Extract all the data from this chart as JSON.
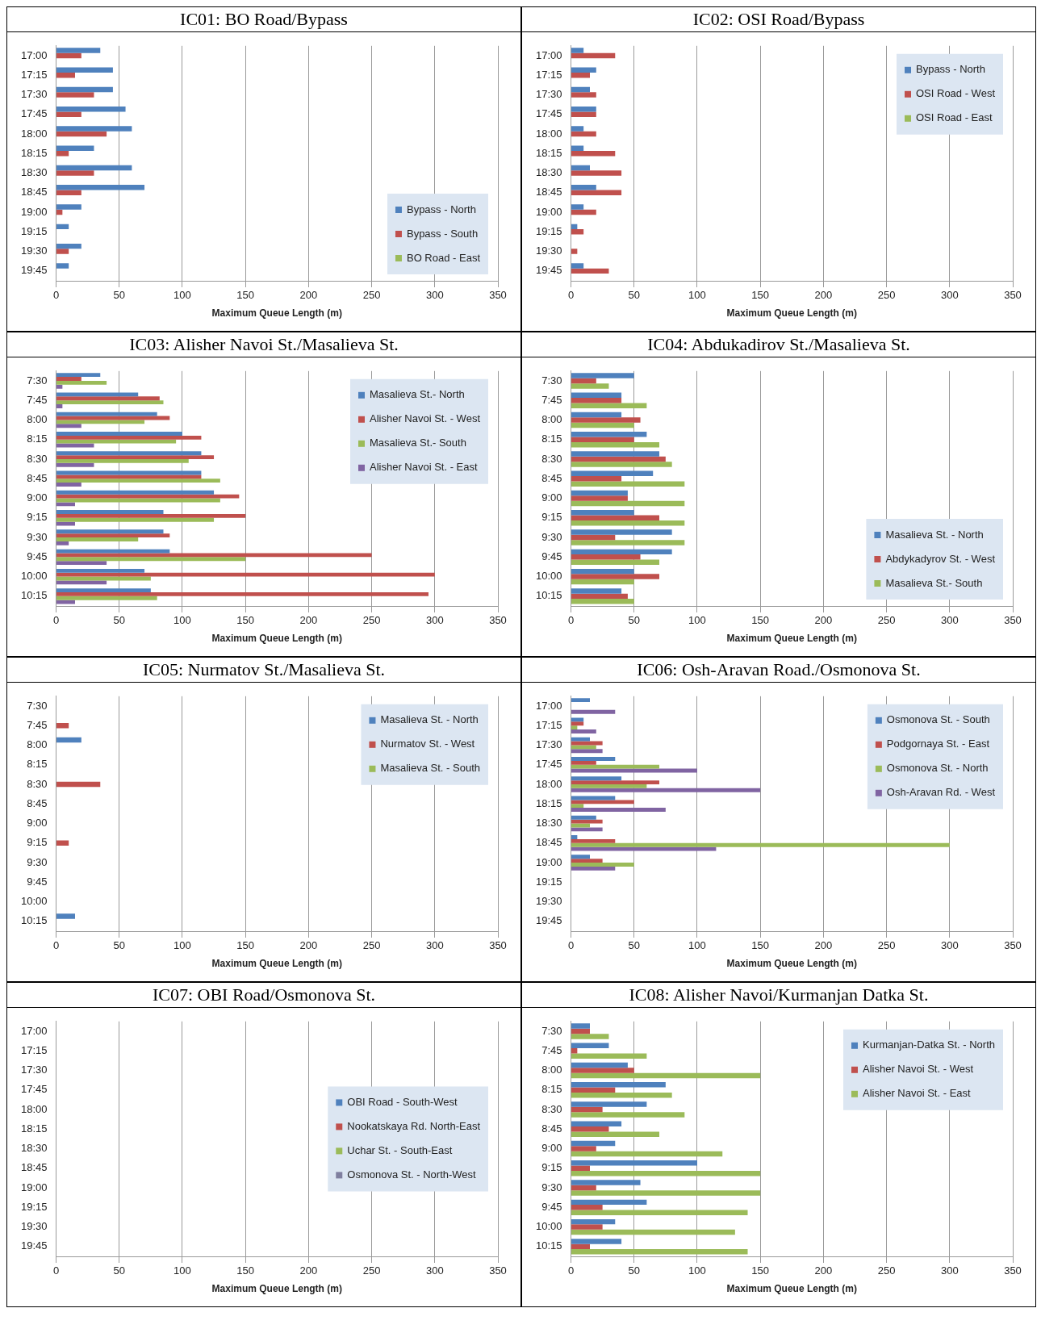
{
  "chart_data": [
    {
      "type": "bar",
      "orientation": "horizontal",
      "title": "IC01: BO Road/Bypass",
      "xlabel": "Maximum Queue Length (m)",
      "categories": [
        "17:00",
        "17:15",
        "17:30",
        "17:45",
        "18:00",
        "18:15",
        "18:30",
        "18:45",
        "19:00",
        "19:15",
        "19:30",
        "19:45"
      ],
      "series": [
        {
          "name": "Bypass - North",
          "color": "#4f81bd",
          "values": [
            35,
            45,
            45,
            55,
            60,
            30,
            60,
            70,
            20,
            10,
            20,
            10
          ]
        },
        {
          "name": "Bypass - South",
          "color": "#c0504d",
          "values": [
            20,
            15,
            30,
            20,
            40,
            10,
            30,
            20,
            5,
            0,
            10,
            0
          ]
        },
        {
          "name": "BO Road - East",
          "color": "#9bbb59",
          "values": [
            0,
            0,
            0,
            0,
            0,
            0,
            0,
            0,
            0,
            0,
            0,
            0
          ]
        }
      ],
      "xlim": [
        0,
        350
      ],
      "xticks": [
        0,
        50,
        100,
        150,
        200,
        250,
        300,
        350
      ],
      "grid": "x",
      "legend": "bottom right"
    },
    {
      "type": "bar",
      "orientation": "horizontal",
      "title": "IC02: OSI Road/Bypass",
      "xlabel": "Maximum Queue Length (m)",
      "categories": [
        "17:00",
        "17:15",
        "17:30",
        "17:45",
        "18:00",
        "18:15",
        "18:30",
        "18:45",
        "19:00",
        "19:15",
        "19:30",
        "19:45"
      ],
      "series": [
        {
          "name": "Bypass - North",
          "color": "#4f81bd",
          "values": [
            10,
            20,
            15,
            20,
            10,
            10,
            15,
            20,
            10,
            5,
            0,
            10
          ]
        },
        {
          "name": "OSI Road - West",
          "color": "#c0504d",
          "values": [
            35,
            15,
            20,
            20,
            20,
            35,
            40,
            40,
            20,
            10,
            5,
            30
          ]
        },
        {
          "name": "OSI Road - East",
          "color": "#9bbb59",
          "values": [
            0,
            0,
            0,
            0,
            0,
            0,
            0,
            0,
            0,
            0,
            0,
            0
          ]
        }
      ],
      "xlim": [
        0,
        350
      ],
      "xticks": [
        0,
        50,
        100,
        150,
        200,
        250,
        300,
        350
      ],
      "grid": "x",
      "legend": "top right"
    },
    {
      "type": "bar",
      "orientation": "horizontal",
      "title": "IC03: Alisher Navoi St./Masalieva St.",
      "xlabel": "Maximum Queue Length (m)",
      "categories": [
        "7:30",
        "7:45",
        "8:00",
        "8:15",
        "8:30",
        "8:45",
        "9:00",
        "9:15",
        "9:30",
        "9:45",
        "10:00",
        "10:15"
      ],
      "series": [
        {
          "name": "Masalieva St.- North",
          "color": "#4f81bd",
          "values": [
            35,
            65,
            80,
            100,
            115,
            115,
            125,
            85,
            85,
            90,
            70,
            75
          ]
        },
        {
          "name": "Alisher Navoi St. - West",
          "color": "#c0504d",
          "values": [
            20,
            82,
            90,
            115,
            125,
            115,
            145,
            150,
            90,
            250,
            300,
            295
          ]
        },
        {
          "name": "Masalieva St.- South",
          "color": "#9bbb59",
          "values": [
            40,
            85,
            70,
            95,
            105,
            130,
            130,
            125,
            65,
            150,
            75,
            80
          ]
        },
        {
          "name": "Alisher Navoi St. - East",
          "color": "#8064a2",
          "values": [
            5,
            5,
            20,
            30,
            30,
            20,
            15,
            15,
            10,
            40,
            40,
            15
          ]
        }
      ],
      "xlim": [
        0,
        350
      ],
      "xticks": [
        0,
        50,
        100,
        150,
        200,
        250,
        300,
        350
      ],
      "grid": "x",
      "legend": "top right"
    },
    {
      "type": "bar",
      "orientation": "horizontal",
      "title": "IC04: Abdukadirov St./Masalieva St.",
      "xlabel": "Maximum Queue Length (m)",
      "categories": [
        "7:30",
        "7:45",
        "8:00",
        "8:15",
        "8:30",
        "8:45",
        "9:00",
        "9:15",
        "9:30",
        "9:45",
        "10:00",
        "10:15"
      ],
      "series": [
        {
          "name": "Masalieva St. - North",
          "color": "#4f81bd",
          "values": [
            50,
            40,
            40,
            60,
            70,
            65,
            45,
            50,
            80,
            80,
            50,
            40
          ]
        },
        {
          "name": "Abdykadyrov St. - West",
          "color": "#c0504d",
          "values": [
            20,
            40,
            55,
            50,
            75,
            40,
            45,
            70,
            35,
            55,
            70,
            45
          ]
        },
        {
          "name": "Masalieva St.- South",
          "color": "#9bbb59",
          "values": [
            30,
            60,
            50,
            70,
            80,
            90,
            90,
            90,
            90,
            70,
            50,
            50
          ]
        }
      ],
      "xlim": [
        0,
        350
      ],
      "xticks": [
        0,
        50,
        100,
        150,
        200,
        250,
        300,
        350
      ],
      "grid": "x",
      "legend": "bottom right"
    },
    {
      "type": "bar",
      "orientation": "horizontal",
      "title": "IC05: Nurmatov St./Masalieva St.",
      "xlabel": "Maximum Queue Length (m)",
      "categories": [
        "7:30",
        "7:45",
        "8:00",
        "8:15",
        "8:30",
        "8:45",
        "9:00",
        "9:15",
        "9:30",
        "9:45",
        "10:00",
        "10:15"
      ],
      "series": [
        {
          "name": "Masalieva St. - North",
          "color": "#4f81bd",
          "values": [
            0,
            0,
            20,
            0,
            0,
            0,
            0,
            0,
            0,
            0,
            0,
            15
          ]
        },
        {
          "name": "Nurmatov St. - West",
          "color": "#c0504d",
          "values": [
            0,
            10,
            0,
            0,
            35,
            0,
            0,
            10,
            0,
            0,
            0,
            0
          ]
        },
        {
          "name": "Masalieva St. - South",
          "color": "#9bbb59",
          "values": [
            0,
            0,
            0,
            0,
            0,
            0,
            0,
            0,
            0,
            0,
            0,
            0
          ]
        }
      ],
      "xlim": [
        0,
        350
      ],
      "xticks": [
        0,
        50,
        100,
        150,
        200,
        250,
        300,
        350
      ],
      "grid": "x",
      "legend": "top right"
    },
    {
      "type": "bar",
      "orientation": "horizontal",
      "title": "IC06: Osh-Aravan Road./Osmonova St.",
      "xlabel": "Maximum Queue Length (m)",
      "categories": [
        "17:00",
        "17:15",
        "17:30",
        "17:45",
        "18:00",
        "18:15",
        "18:30",
        "18:45",
        "19:00",
        "19:15",
        "19:30",
        "19:45"
      ],
      "series": [
        {
          "name": "Osmonova St. - South",
          "color": "#4f81bd",
          "values": [
            15,
            10,
            15,
            35,
            40,
            35,
            20,
            5,
            15,
            0,
            0,
            0
          ]
        },
        {
          "name": "Podgornaya St. - East",
          "color": "#c0504d",
          "values": [
            0,
            10,
            25,
            20,
            70,
            50,
            25,
            35,
            25,
            0,
            0,
            0
          ]
        },
        {
          "name": "Osmonova St. - North",
          "color": "#9bbb59",
          "values": [
            0,
            5,
            20,
            70,
            60,
            10,
            15,
            300,
            50,
            0,
            0,
            0
          ]
        },
        {
          "name": "Osh-Aravan Rd. - West",
          "color": "#8064a2",
          "values": [
            35,
            20,
            25,
            100,
            150,
            75,
            25,
            115,
            35,
            0,
            0,
            0
          ]
        }
      ],
      "xlim": [
        0,
        350
      ],
      "xticks": [
        0,
        50,
        100,
        150,
        200,
        250,
        300,
        350
      ],
      "grid": "x",
      "legend": "top right"
    },
    {
      "type": "bar",
      "orientation": "horizontal",
      "title": "IC07: OBI Road/Osmonova St.",
      "xlabel": "Maximum Queue Length (m)",
      "categories": [
        "17:00",
        "17:15",
        "17:30",
        "17:45",
        "18:00",
        "18:15",
        "18:30",
        "18:45",
        "19:00",
        "19:15",
        "19:30",
        "19:45"
      ],
      "series": [
        {
          "name": "OBI Road - South-West",
          "color": "#4f81bd",
          "values": [
            0,
            0,
            0,
            0,
            0,
            0,
            0,
            0,
            0,
            0,
            0,
            0
          ]
        },
        {
          "name": "Nookatskaya Rd. North-East",
          "color": "#c0504d",
          "values": [
            0,
            0,
            0,
            0,
            0,
            0,
            0,
            0,
            0,
            0,
            0,
            0
          ]
        },
        {
          "name": "Uchar St. - South-East",
          "color": "#9bbb59",
          "values": [
            0,
            0,
            0,
            0,
            0,
            0,
            0,
            0,
            0,
            0,
            0,
            0
          ]
        },
        {
          "name": "Osmonova St. - North-West",
          "color": "#7f7f9f",
          "values": [
            0,
            0,
            0,
            0,
            0,
            0,
            0,
            0,
            0,
            0,
            0,
            0
          ]
        }
      ],
      "xlim": [
        0,
        350
      ],
      "xticks": [
        0,
        50,
        100,
        150,
        200,
        250,
        300,
        350
      ],
      "grid": "x",
      "legend": "right"
    },
    {
      "type": "bar",
      "orientation": "horizontal",
      "title": "IC08: Alisher Navoi/Kurmanjan Datka St.",
      "xlabel": "Maximum Queue Length (m)",
      "categories": [
        "7:30",
        "7:45",
        "8:00",
        "8:15",
        "8:30",
        "8:45",
        "9:00",
        "9:15",
        "9:30",
        "9:45",
        "10:00",
        "10:15"
      ],
      "series": [
        {
          "name": "Kurmanjan-Datka St. - North",
          "color": "#4f81bd",
          "values": [
            15,
            30,
            45,
            75,
            60,
            40,
            35,
            100,
            55,
            60,
            35,
            40
          ]
        },
        {
          "name": "Alisher Navoi St. - West",
          "color": "#c0504d",
          "values": [
            15,
            5,
            50,
            35,
            25,
            30,
            20,
            15,
            20,
            25,
            25,
            15
          ]
        },
        {
          "name": "Alisher Navoi St. - East",
          "color": "#9bbb59",
          "values": [
            30,
            60,
            150,
            80,
            90,
            70,
            120,
            150,
            150,
            140,
            130,
            140
          ]
        }
      ],
      "xlim": [
        0,
        350
      ],
      "xticks": [
        0,
        50,
        100,
        150,
        200,
        250,
        300,
        350
      ],
      "grid": "x",
      "legend": "top right"
    }
  ]
}
